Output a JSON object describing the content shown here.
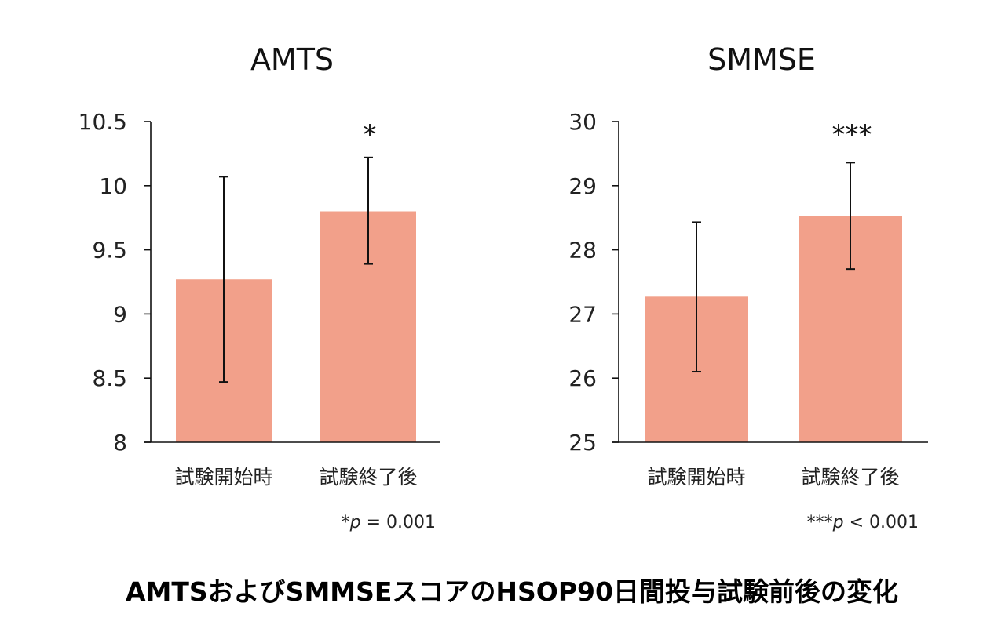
{
  "chart_data": [
    {
      "type": "bar",
      "title": "AMTS",
      "categories": [
        "試験開始時",
        "試験終了後"
      ],
      "values": [
        9.27,
        9.8
      ],
      "error_low": [
        8.47,
        9.39
      ],
      "error_high": [
        10.07,
        10.22
      ],
      "ylim": [
        8,
        10.5
      ],
      "yticks": [
        "10.5",
        "10",
        "9.5",
        "9",
        "8.5",
        "8"
      ],
      "ytick_values": [
        10.5,
        10,
        9.5,
        9,
        8.5,
        8
      ],
      "significance": [
        "",
        "*"
      ],
      "p_note": {
        "stars": "*",
        "p": "p",
        "rest": " = 0.001"
      },
      "bar_color": "#F2A08A",
      "grid": false
    },
    {
      "type": "bar",
      "title": "SMMSE",
      "categories": [
        "試験開始時",
        "試験終了後"
      ],
      "values": [
        27.27,
        28.53
      ],
      "error_low": [
        26.1,
        27.7
      ],
      "error_high": [
        28.43,
        29.36
      ],
      "ylim": [
        25,
        30
      ],
      "yticks": [
        "30",
        "29",
        "28",
        "27",
        "26",
        "25"
      ],
      "ytick_values": [
        30,
        29,
        28,
        27,
        26,
        25
      ],
      "significance": [
        "",
        "***"
      ],
      "p_note": {
        "stars": "***",
        "p": "p",
        "rest": " < 0.001"
      },
      "bar_color": "#F2A08A",
      "grid": false
    }
  ],
  "caption": "AMTSおよびSMMSEスコアのHSOP90日間投与試験前後の変化"
}
